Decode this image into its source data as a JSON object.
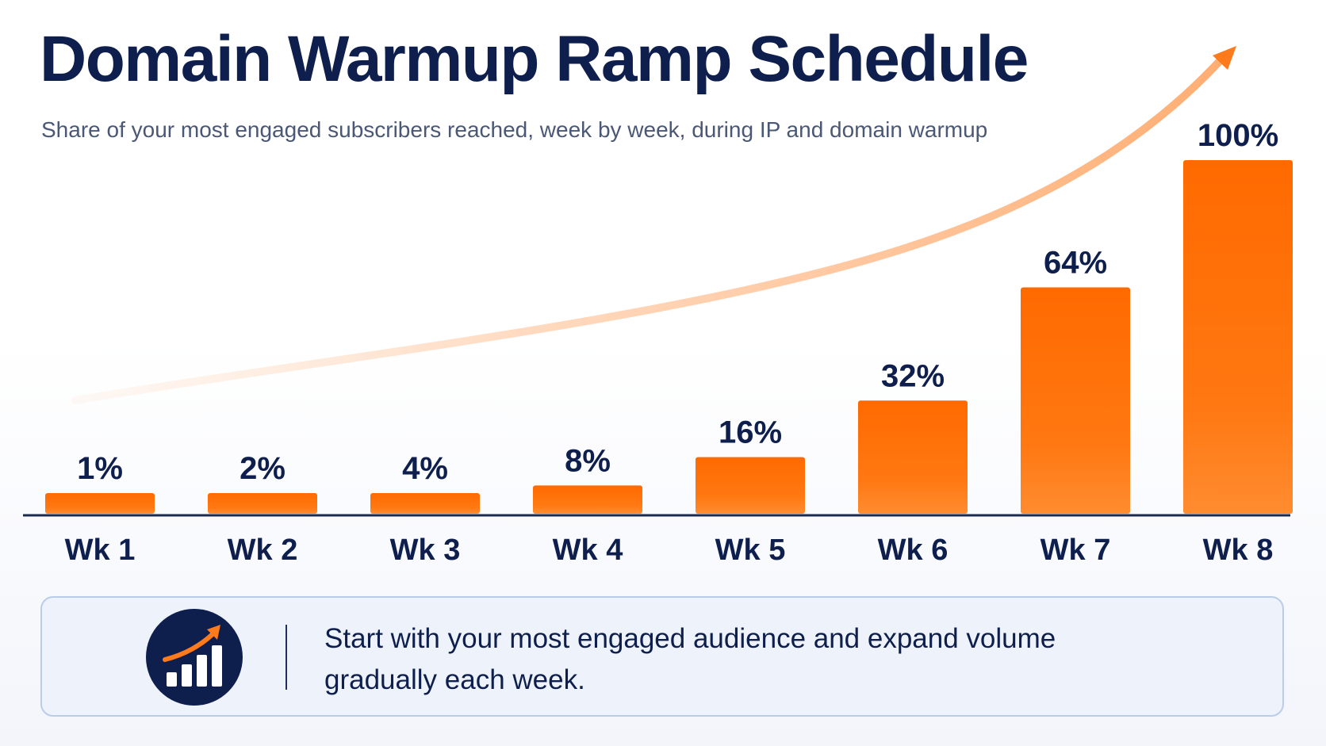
{
  "title": "Domain Warmup Ramp Schedule",
  "subtitle": "Share of your most engaged subscribers reached, week by week, during IP and domain warmup",
  "chart_data": {
    "type": "bar",
    "title": "Domain Warmup Ramp Schedule",
    "subtitle": "Share of your most engaged subscribers reached, week by week, during IP and domain warmup",
    "categories": [
      "Wk 1",
      "Wk 2",
      "Wk 3",
      "Wk 4",
      "Wk 5",
      "Wk 6",
      "Wk 7",
      "Wk 8"
    ],
    "values": [
      1,
      2,
      4,
      8,
      16,
      32,
      64,
      100
    ],
    "value_labels": [
      "1%",
      "2%",
      "4%",
      "8%",
      "16%",
      "32%",
      "64%",
      "100%"
    ],
    "xlabel": "",
    "ylabel": "",
    "grid": false,
    "legend": "none",
    "trend_arrow": true
  },
  "callout": {
    "icon": "growth-chart-icon",
    "text": "Start with your most engaged audience and expand volume gradually each week."
  },
  "colors": {
    "title": "#0e1f4d",
    "bar_top": "#ff6a00",
    "bar_bottom": "#ff8a2e",
    "arrow": "#ffb27a",
    "axis": "#1c2a4e",
    "callout_bg": "#eef3fb",
    "callout_border": "#b9cde8",
    "icon_bg": "#0e1f4d",
    "icon_accent": "#ff7a1a"
  }
}
